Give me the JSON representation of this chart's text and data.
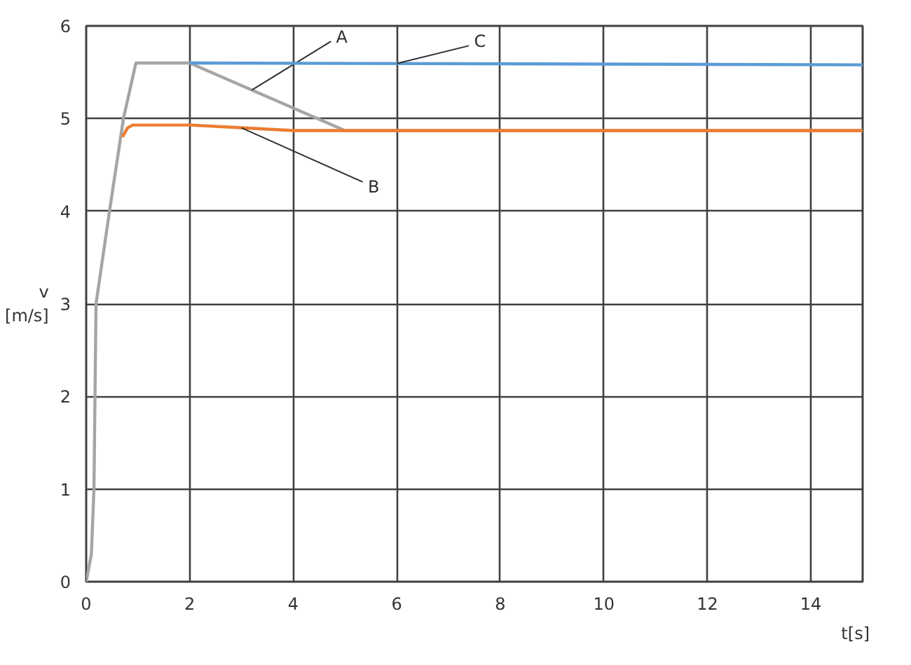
{
  "chart_data": {
    "type": "line",
    "xlabel": "t[s]",
    "ylabel": "v\n[m/s]",
    "xlim": [
      0,
      15
    ],
    "ylim": [
      0,
      6
    ],
    "xticks": [
      0,
      2,
      4,
      6,
      8,
      10,
      12,
      14
    ],
    "yticks": [
      0,
      1,
      2,
      3,
      4,
      5,
      6
    ],
    "grid": true,
    "marker": "none",
    "line_style": "solid",
    "series": [
      {
        "name": "A",
        "color": "#a5a5a5",
        "x": [
          0,
          0.1,
          0.15,
          0.19,
          0.45,
          0.72,
          0.96,
          2,
          5,
          15
        ],
        "values": [
          0,
          0.3,
          1,
          3,
          4,
          5,
          5.6,
          5.6,
          4.87,
          4.87
        ]
      },
      {
        "name": "B",
        "color": "#ed7d31",
        "x": [
          0.7,
          0.8,
          0.9,
          2,
          3,
          4,
          15
        ],
        "values": [
          4.8,
          4.9,
          4.93,
          4.93,
          4.9,
          4.87,
          4.87
        ]
      },
      {
        "name": "C",
        "color": "#5b9bd5",
        "x": [
          2,
          15
        ],
        "values": [
          5.6,
          5.58
        ]
      }
    ]
  }
}
